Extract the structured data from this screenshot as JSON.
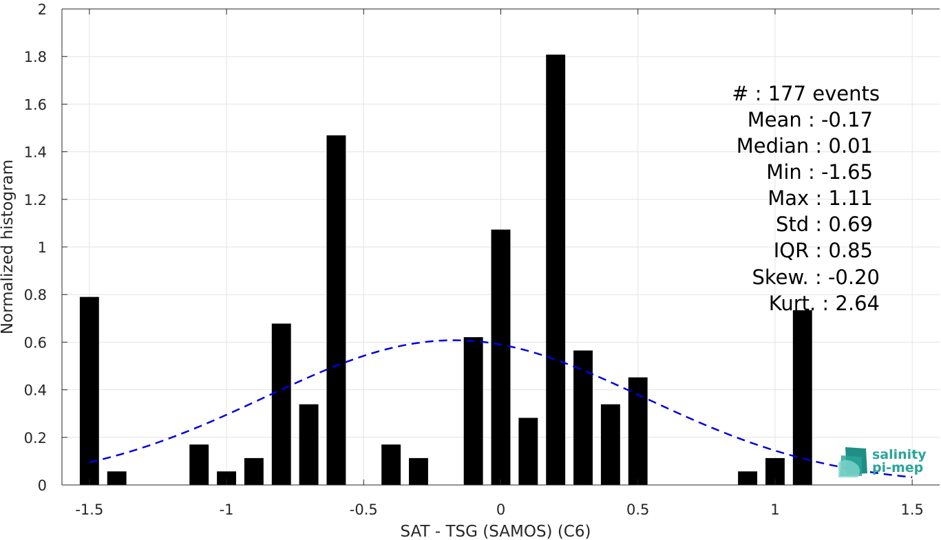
{
  "chart_data": {
    "type": "bar",
    "xlabel": "SAT - TSG (SAMOS) (C6)",
    "ylabel": "Normalized histogram",
    "xlim": [
      -1.6,
      1.6
    ],
    "ylim": [
      0,
      2
    ],
    "grid": true,
    "x_ticks": [
      -1.5,
      -1,
      -0.5,
      0,
      0.5,
      1,
      1.5
    ],
    "x_tick_labels": [
      "-1.5",
      "-1",
      "-0.5",
      "0",
      "0.5",
      "1",
      "1.5"
    ],
    "y_ticks": [
      0,
      0.2,
      0.4,
      0.6,
      0.8,
      1,
      1.2,
      1.4,
      1.6,
      1.8,
      2
    ],
    "y_tick_labels": [
      "0",
      "0.2",
      "0.4",
      "0.6",
      "0.8",
      "1",
      "1.2",
      "1.4",
      "1.6",
      "1.8",
      "2"
    ],
    "bar_width": 0.07,
    "bars": [
      {
        "x": -1.5,
        "y": 0.79
      },
      {
        "x": -1.4,
        "y": 0.057
      },
      {
        "x": -1.1,
        "y": 0.17
      },
      {
        "x": -1.0,
        "y": 0.057
      },
      {
        "x": -0.9,
        "y": 0.113
      },
      {
        "x": -0.8,
        "y": 0.678
      },
      {
        "x": -0.7,
        "y": 0.339
      },
      {
        "x": -0.6,
        "y": 1.469
      },
      {
        "x": -0.4,
        "y": 0.17
      },
      {
        "x": -0.3,
        "y": 0.113
      },
      {
        "x": -0.1,
        "y": 0.621
      },
      {
        "x": 0.0,
        "y": 1.073
      },
      {
        "x": 0.1,
        "y": 0.282
      },
      {
        "x": 0.2,
        "y": 1.808
      },
      {
        "x": 0.3,
        "y": 0.565
      },
      {
        "x": 0.4,
        "y": 0.339
      },
      {
        "x": 0.5,
        "y": 0.452
      },
      {
        "x": 0.9,
        "y": 0.057
      },
      {
        "x": 1.0,
        "y": 0.113
      },
      {
        "x": 1.1,
        "y": 0.734
      }
    ],
    "fit_curve": {
      "style": "dashed",
      "color": "#0000e6",
      "mean": -0.17,
      "std": 0.69,
      "peak": 0.608,
      "x_range": [
        -1.5,
        1.5
      ]
    },
    "stats": [
      "#  : 177 events",
      "Mean : -0.17",
      "Median : 0.01",
      "Min : -1.65",
      "Max : 1.11",
      "Std : 0.69",
      "IQR : 0.85",
      "Skew. : -0.20",
      "Kurt. : 2.64"
    ]
  },
  "logo": {
    "line1": "salinity",
    "line2": "pi-mep",
    "color": "#2aa59a"
  }
}
